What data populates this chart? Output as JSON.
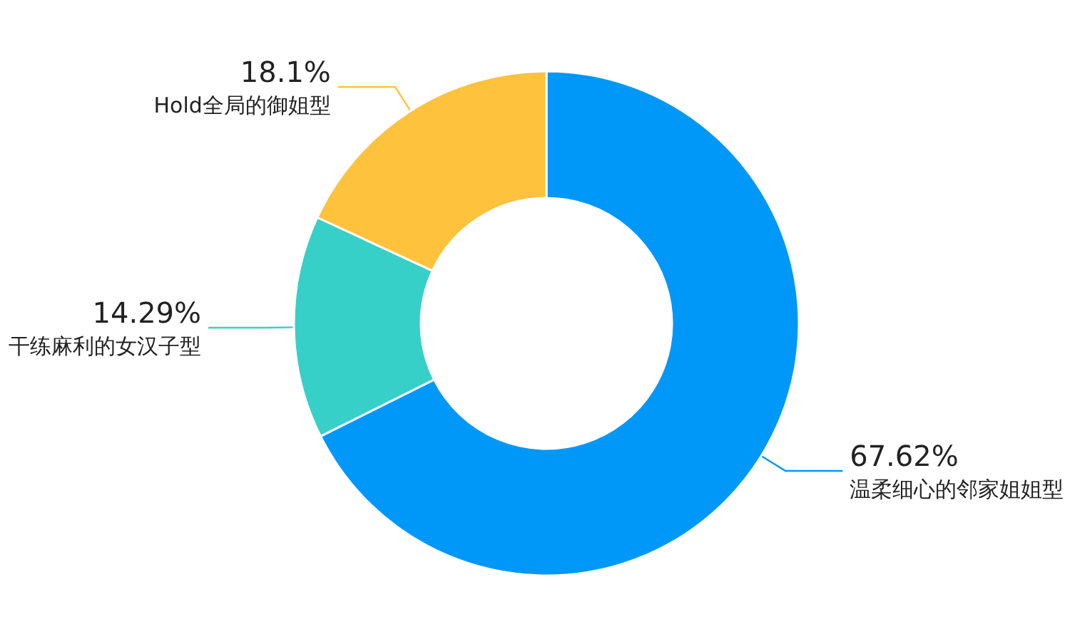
{
  "chart_data": {
    "type": "donut",
    "categories": [
      "温柔细心的邻家姐姐型",
      "干练麻利的女汉子型",
      "Hold全局的御姐型"
    ],
    "values": [
      67.62,
      14.29,
      18.1
    ],
    "colors": [
      "#0098f8",
      "#36d0c8",
      "#ffc23d"
    ],
    "value_labels": [
      "67.62%",
      "14.29%",
      "18.1%"
    ],
    "legend": false
  }
}
